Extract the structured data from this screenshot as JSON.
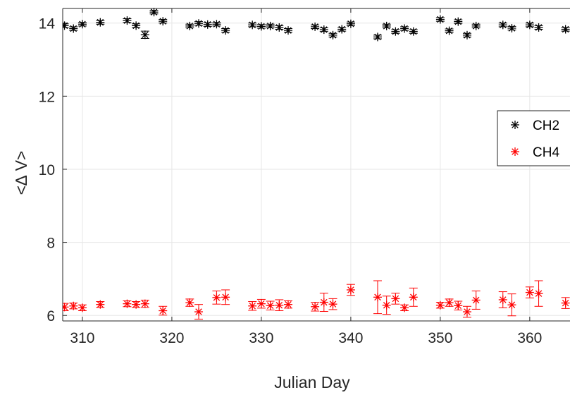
{
  "chart_data": {
    "type": "scatter",
    "xlabel": "Julian Day",
    "ylabel": "<∆ V>",
    "xlim": [
      307.8,
      364.5
    ],
    "ylim": [
      5.85,
      14.4
    ],
    "xticks": [
      310,
      320,
      330,
      340,
      350,
      360
    ],
    "yticks": [
      6,
      8,
      10,
      12,
      14
    ],
    "grid": true,
    "legend_position": "right",
    "series": [
      {
        "name": "CH2",
        "color": "#000000",
        "marker": "asterisk",
        "points": [
          {
            "x": 308,
            "y": 13.93,
            "err": 0.05
          },
          {
            "x": 309,
            "y": 13.85,
            "err": 0.05
          },
          {
            "x": 310,
            "y": 13.97,
            "err": 0.05
          },
          {
            "x": 312,
            "y": 14.02,
            "err": 0.05
          },
          {
            "x": 315,
            "y": 14.07,
            "err": 0.05
          },
          {
            "x": 316,
            "y": 13.93,
            "err": 0.05
          },
          {
            "x": 317,
            "y": 13.68,
            "err": 0.1
          },
          {
            "x": 318,
            "y": 14.3,
            "err": 0.05
          },
          {
            "x": 319,
            "y": 14.05,
            "err": 0.05
          },
          {
            "x": 322,
            "y": 13.92,
            "err": 0.05
          },
          {
            "x": 323,
            "y": 13.99,
            "err": 0.05
          },
          {
            "x": 324,
            "y": 13.96,
            "err": 0.05
          },
          {
            "x": 325,
            "y": 13.97,
            "err": 0.05
          },
          {
            "x": 326,
            "y": 13.8,
            "err": 0.05
          },
          {
            "x": 329,
            "y": 13.95,
            "err": 0.05
          },
          {
            "x": 330,
            "y": 13.91,
            "err": 0.05
          },
          {
            "x": 331,
            "y": 13.92,
            "err": 0.05
          },
          {
            "x": 332,
            "y": 13.88,
            "err": 0.05
          },
          {
            "x": 333,
            "y": 13.8,
            "err": 0.05
          },
          {
            "x": 336,
            "y": 13.9,
            "err": 0.05
          },
          {
            "x": 337,
            "y": 13.82,
            "err": 0.05
          },
          {
            "x": 338,
            "y": 13.67,
            "err": 0.05
          },
          {
            "x": 339,
            "y": 13.83,
            "err": 0.05
          },
          {
            "x": 340,
            "y": 13.98,
            "err": 0.05
          },
          {
            "x": 343,
            "y": 13.62,
            "err": 0.05
          },
          {
            "x": 344,
            "y": 13.92,
            "err": 0.05
          },
          {
            "x": 345,
            "y": 13.77,
            "err": 0.05
          },
          {
            "x": 346,
            "y": 13.85,
            "err": 0.05
          },
          {
            "x": 347,
            "y": 13.77,
            "err": 0.05
          },
          {
            "x": 350,
            "y": 14.1,
            "err": 0.05
          },
          {
            "x": 351,
            "y": 13.79,
            "err": 0.05
          },
          {
            "x": 352,
            "y": 14.04,
            "err": 0.05
          },
          {
            "x": 353,
            "y": 13.67,
            "err": 0.05
          },
          {
            "x": 354,
            "y": 13.92,
            "err": 0.05
          },
          {
            "x": 357,
            "y": 13.95,
            "err": 0.05
          },
          {
            "x": 358,
            "y": 13.86,
            "err": 0.05
          },
          {
            "x": 360,
            "y": 13.95,
            "err": 0.05
          },
          {
            "x": 361,
            "y": 13.88,
            "err": 0.05
          },
          {
            "x": 364,
            "y": 13.83,
            "err": 0.05
          }
        ]
      },
      {
        "name": "CH4",
        "color": "#ff0000",
        "marker": "asterisk",
        "points": [
          {
            "x": 308,
            "y": 6.23,
            "err": 0.1
          },
          {
            "x": 309,
            "y": 6.26,
            "err": 0.08
          },
          {
            "x": 310,
            "y": 6.21,
            "err": 0.08
          },
          {
            "x": 312,
            "y": 6.3,
            "err": 0.08
          },
          {
            "x": 315,
            "y": 6.32,
            "err": 0.08
          },
          {
            "x": 316,
            "y": 6.3,
            "err": 0.08
          },
          {
            "x": 317,
            "y": 6.32,
            "err": 0.1
          },
          {
            "x": 319,
            "y": 6.13,
            "err": 0.12
          },
          {
            "x": 322,
            "y": 6.35,
            "err": 0.1
          },
          {
            "x": 323,
            "y": 6.1,
            "err": 0.2
          },
          {
            "x": 325,
            "y": 6.49,
            "err": 0.18
          },
          {
            "x": 326,
            "y": 6.5,
            "err": 0.2
          },
          {
            "x": 329,
            "y": 6.26,
            "err": 0.12
          },
          {
            "x": 330,
            "y": 6.32,
            "err": 0.12
          },
          {
            "x": 331,
            "y": 6.27,
            "err": 0.12
          },
          {
            "x": 332,
            "y": 6.28,
            "err": 0.15
          },
          {
            "x": 333,
            "y": 6.3,
            "err": 0.1
          },
          {
            "x": 336,
            "y": 6.24,
            "err": 0.12
          },
          {
            "x": 337,
            "y": 6.36,
            "err": 0.25
          },
          {
            "x": 338,
            "y": 6.31,
            "err": 0.15
          },
          {
            "x": 340,
            "y": 6.7,
            "err": 0.15
          },
          {
            "x": 343,
            "y": 6.5,
            "err": 0.45
          },
          {
            "x": 344,
            "y": 6.28,
            "err": 0.25
          },
          {
            "x": 345,
            "y": 6.46,
            "err": 0.15
          },
          {
            "x": 346,
            "y": 6.21,
            "err": 0.08
          },
          {
            "x": 347,
            "y": 6.5,
            "err": 0.25
          },
          {
            "x": 350,
            "y": 6.28,
            "err": 0.08
          },
          {
            "x": 351,
            "y": 6.35,
            "err": 0.1
          },
          {
            "x": 352,
            "y": 6.27,
            "err": 0.12
          },
          {
            "x": 353,
            "y": 6.1,
            "err": 0.15
          },
          {
            "x": 354,
            "y": 6.42,
            "err": 0.25
          },
          {
            "x": 357,
            "y": 6.43,
            "err": 0.22
          },
          {
            "x": 358,
            "y": 6.29,
            "err": 0.3
          },
          {
            "x": 360,
            "y": 6.63,
            "err": 0.15
          },
          {
            "x": 361,
            "y": 6.6,
            "err": 0.35
          },
          {
            "x": 364,
            "y": 6.34,
            "err": 0.15
          }
        ]
      }
    ]
  }
}
